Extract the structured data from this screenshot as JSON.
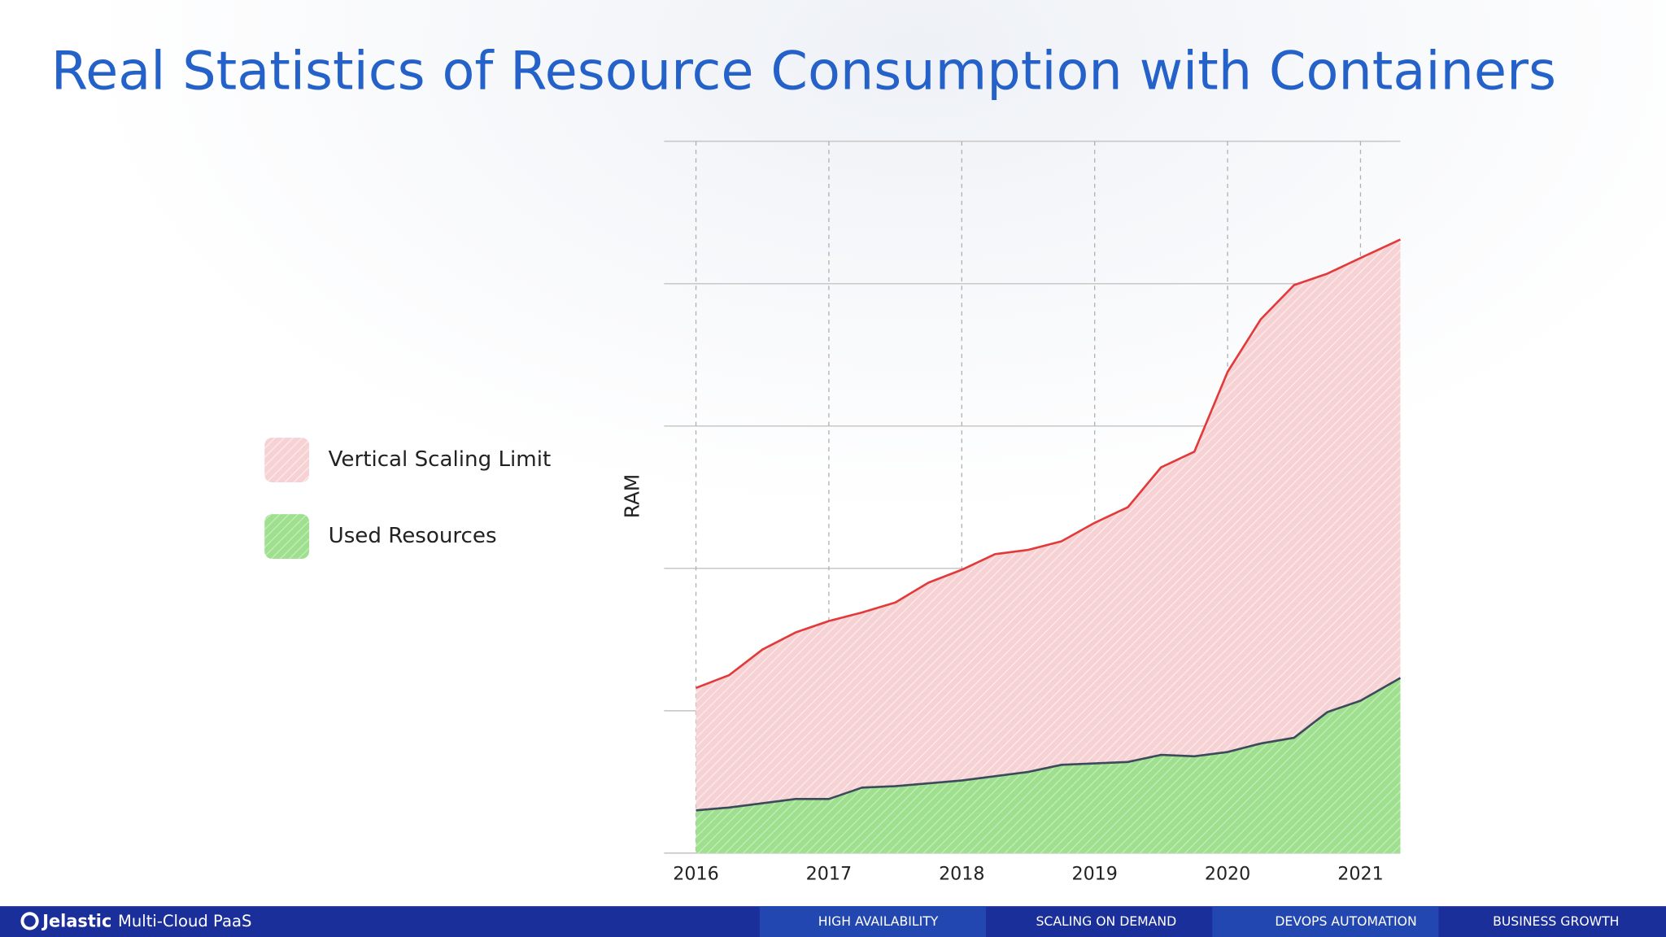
{
  "chart_data": {
    "type": "area",
    "title": "Real Statistics of Resource Consumption with Containers",
    "y_label": "RAM",
    "x": [
      2016,
      2016.25,
      2016.5,
      2016.75,
      2017,
      2017.25,
      2017.5,
      2017.75,
      2018,
      2018.25,
      2018.5,
      2018.75,
      2019,
      2019.25,
      2019.5,
      2019.75,
      2020,
      2020.25,
      2020.5,
      2020.75,
      2021,
      2021.3
    ],
    "series": [
      {
        "name": "Vertical Scaling Limit",
        "color": "#e23a3a",
        "fill": "#f6d2d4",
        "values": [
          1.16,
          1.25,
          1.43,
          1.55,
          1.63,
          1.69,
          1.76,
          1.9,
          1.99,
          2.1,
          2.13,
          2.19,
          2.32,
          2.43,
          2.71,
          2.82,
          3.38,
          3.75,
          3.99,
          4.07,
          4.18,
          4.31
        ]
      },
      {
        "name": "Used Resources",
        "color": "#3d4a5c",
        "fill": "#9fe08f",
        "values": [
          0.3,
          0.32,
          0.35,
          0.38,
          0.38,
          0.46,
          0.47,
          0.49,
          0.51,
          0.54,
          0.57,
          0.62,
          0.63,
          0.64,
          0.69,
          0.68,
          0.71,
          0.77,
          0.81,
          0.99,
          1.07,
          1.23
        ]
      }
    ],
    "xlim": [
      2015.76,
      2021.3
    ],
    "xticks": [
      2016,
      2017,
      2018,
      2019,
      2020,
      2021
    ],
    "ylim": [
      0,
      5
    ],
    "ygrid": [
      0,
      1,
      2,
      3,
      4,
      5
    ],
    "legend": "left"
  },
  "footer": {
    "brand": "Jelastic",
    "product": "Multi-Cloud PaaS",
    "sections": [
      "HIGH AVAILABILITY",
      "SCALING ON DEMAND",
      "DEVOPS AUTOMATION",
      "BUSINESS GROWTH"
    ]
  }
}
